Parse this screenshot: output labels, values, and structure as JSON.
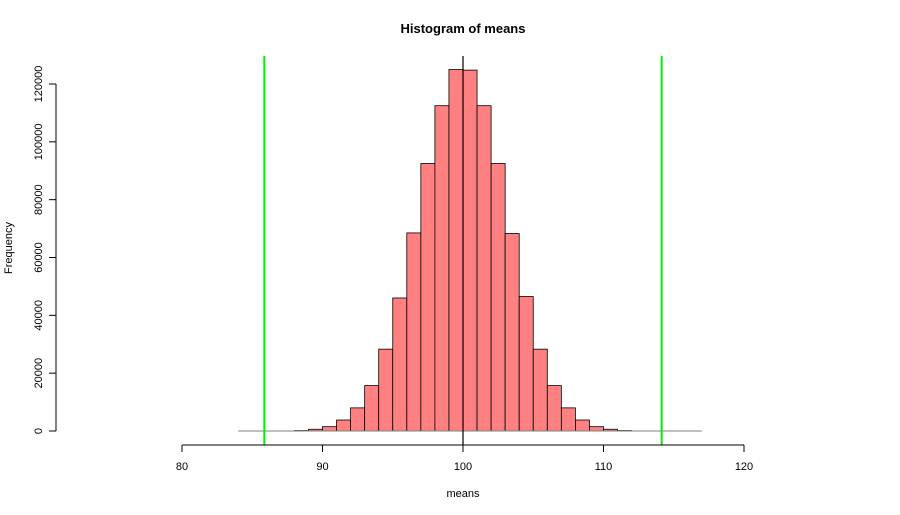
{
  "chart_data": {
    "type": "bar",
    "title": "Histogram of means",
    "xlabel": "means",
    "ylabel": "Frequency",
    "xlim": [
      80,
      120
    ],
    "ylim": [
      0,
      125000
    ],
    "x_ticks": [
      "80",
      "90",
      "100",
      "110",
      "120"
    ],
    "y_ticks": [
      "0",
      "20000",
      "40000",
      "60000",
      "80000",
      "100000",
      "120000"
    ],
    "bin_width": 1,
    "bins": [
      {
        "x0": 84,
        "x1": 85,
        "count": 0
      },
      {
        "x0": 85,
        "x1": 86,
        "count": 0
      },
      {
        "x0": 86,
        "x1": 87,
        "count": 0
      },
      {
        "x0": 87,
        "x1": 88,
        "count": 20
      },
      {
        "x0": 88,
        "x1": 89,
        "count": 150
      },
      {
        "x0": 89,
        "x1": 90,
        "count": 600
      },
      {
        "x0": 90,
        "x1": 91,
        "count": 1500
      },
      {
        "x0": 91,
        "x1": 92,
        "count": 3800
      },
      {
        "x0": 92,
        "x1": 93,
        "count": 8000
      },
      {
        "x0": 93,
        "x1": 94,
        "count": 15700
      },
      {
        "x0": 94,
        "x1": 95,
        "count": 28300
      },
      {
        "x0": 95,
        "x1": 96,
        "count": 46000
      },
      {
        "x0": 96,
        "x1": 97,
        "count": 68500
      },
      {
        "x0": 97,
        "x1": 98,
        "count": 92500
      },
      {
        "x0": 98,
        "x1": 99,
        "count": 112500
      },
      {
        "x0": 99,
        "x1": 100,
        "count": 125000
      },
      {
        "x0": 100,
        "x1": 101,
        "count": 124800
      },
      {
        "x0": 101,
        "x1": 102,
        "count": 112500
      },
      {
        "x0": 102,
        "x1": 103,
        "count": 92500
      },
      {
        "x0": 103,
        "x1": 104,
        "count": 68300
      },
      {
        "x0": 104,
        "x1": 105,
        "count": 46500
      },
      {
        "x0": 105,
        "x1": 106,
        "count": 28300
      },
      {
        "x0": 106,
        "x1": 107,
        "count": 15700
      },
      {
        "x0": 107,
        "x1": 108,
        "count": 8000
      },
      {
        "x0": 108,
        "x1": 109,
        "count": 3800
      },
      {
        "x0": 109,
        "x1": 110,
        "count": 1500
      },
      {
        "x0": 110,
        "x1": 111,
        "count": 600
      },
      {
        "x0": 111,
        "x1": 112,
        "count": 150
      },
      {
        "x0": 112,
        "x1": 113,
        "count": 20
      },
      {
        "x0": 113,
        "x1": 114,
        "count": 0
      },
      {
        "x0": 114,
        "x1": 115,
        "count": 0
      },
      {
        "x0": 115,
        "x1": 116,
        "count": 0
      },
      {
        "x0": 116,
        "x1": 117,
        "count": 0
      }
    ],
    "vertical_lines": [
      {
        "x": 85.86,
        "color": "#00ee00"
      },
      {
        "x": 100,
        "color": "#000000"
      },
      {
        "x": 114.14,
        "color": "#00ee00"
      }
    ],
    "colors": {
      "bar_fill": "#ff8080",
      "bar_stroke": "#000000",
      "baseline": "#808080"
    },
    "grid": false,
    "legend": "none"
  }
}
